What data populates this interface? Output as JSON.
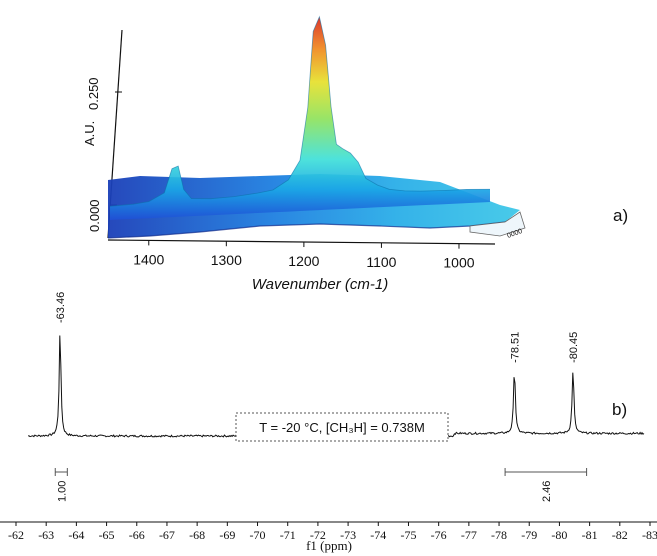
{
  "figure": {
    "panel_a_label": "a)",
    "panel_b_label": "b)"
  },
  "chart_data": [
    {
      "panel": "a)",
      "type": "area",
      "view": "3d-surface",
      "xlabel": "Wavenumber (cm-1)",
      "ylabel": "A.U.",
      "x_ticks": [
        "1400",
        "1300",
        "1200",
        "1100",
        "1000"
      ],
      "y_ticks": [
        "0.000",
        "0.250"
      ],
      "xlim": [
        1460,
        950
      ],
      "ylim": [
        0,
        0.4
      ],
      "x_reversed": true,
      "colormap": [
        "#1f4fd6",
        "#1aa6e6",
        "#3ee0d8",
        "#8fe25a",
        "#e6e02a",
        "#f08a1c",
        "#d8261a"
      ],
      "series": [
        {
          "x": [
            1450,
            1420,
            1400,
            1380,
            1370,
            1362,
            1355,
            1345,
            1320,
            1290,
            1260,
            1240,
            1220,
            1205,
            1195,
            1188,
            1180,
            1172,
            1165,
            1158,
            1150,
            1140,
            1130,
            1120,
            1105,
            1090,
            1070,
            1050,
            1020,
            990,
            960
          ],
          "y": [
            0.012,
            0.014,
            0.018,
            0.035,
            0.085,
            0.09,
            0.04,
            0.02,
            0.018,
            0.02,
            0.025,
            0.03,
            0.05,
            0.09,
            0.2,
            0.36,
            0.39,
            0.33,
            0.2,
            0.12,
            0.11,
            0.1,
            0.08,
            0.045,
            0.03,
            0.02,
            0.015,
            0.013,
            0.012,
            0.012,
            0.01
          ]
        }
      ]
    },
    {
      "panel": "b)",
      "type": "line",
      "xlabel": "f1 (ppm)",
      "ylabel": "",
      "x_ticks": [
        "-62",
        "-63",
        "-64",
        "-65",
        "-66",
        "-67",
        "-68",
        "-69",
        "-70",
        "-71",
        "-72",
        "-73",
        "-74",
        "-75",
        "-76",
        "-77",
        "-78",
        "-79",
        "-80",
        "-81",
        "-82",
        "-83"
      ],
      "xlim": [
        -62,
        -83
      ],
      "x_reversed": true,
      "peaks": [
        {
          "x": -63.46,
          "y": 1.0,
          "label": "-63.46"
        },
        {
          "x": -78.51,
          "y": 0.62,
          "label": "-78.51"
        },
        {
          "x": -80.45,
          "y": 0.62,
          "label": "-80.45"
        }
      ],
      "baseline_y": 0.02,
      "integrals": [
        {
          "from": -63.3,
          "to": -63.7,
          "value": "1.00"
        },
        {
          "from": -78.2,
          "to": -80.9,
          "value": "2.46"
        }
      ],
      "annotation": "T = -20 °C, [CH₃H] = 0.738M"
    }
  ]
}
